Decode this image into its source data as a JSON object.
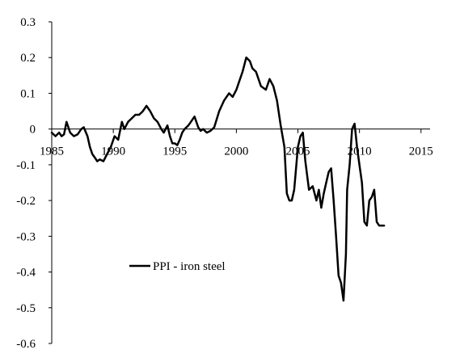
{
  "chart_data": {
    "type": "line",
    "title": "",
    "xlabel": "",
    "ylabel": "",
    "xlim": [
      1985,
      2016
    ],
    "ylim": [
      -0.6,
      0.3
    ],
    "x_ticks": [
      1985,
      1990,
      1995,
      2000,
      2005,
      2010,
      2015
    ],
    "x_tick_labels": [
      "1985",
      "1990",
      "1995",
      "2000",
      "2005",
      "2010",
      "2015"
    ],
    "y_ticks": [
      0.3,
      0.2,
      0.1,
      0,
      -0.1,
      -0.2,
      -0.3,
      -0.4,
      -0.5,
      -0.6
    ],
    "y_tick_labels": [
      "0.3",
      "0.2",
      "0.1",
      "0",
      "-0.1",
      "-0.2",
      "-0.3",
      "-0.4",
      "-0.5",
      "-0.6"
    ],
    "grid": false,
    "legend": {
      "position": "lower-left"
    },
    "series": [
      {
        "name": "PPI - iron steel",
        "color": "#000000",
        "x": [
          1985.0,
          1985.3,
          1985.6,
          1985.8,
          1986.0,
          1986.2,
          1986.5,
          1986.8,
          1987.1,
          1987.4,
          1987.6,
          1987.9,
          1988.1,
          1988.3,
          1988.5,
          1988.7,
          1988.9,
          1989.2,
          1989.5,
          1989.8,
          1990.1,
          1990.4,
          1990.7,
          1990.9,
          1991.2,
          1991.5,
          1991.8,
          1992.1,
          1992.4,
          1992.7,
          1993.0,
          1993.3,
          1993.6,
          1993.9,
          1994.1,
          1994.4,
          1994.6,
          1994.8,
          1995.0,
          1995.2,
          1995.4,
          1995.6,
          1995.8,
          1996.1,
          1996.3,
          1996.6,
          1996.9,
          1997.1,
          1997.3,
          1997.6,
          1997.9,
          1998.2,
          1998.6,
          1999.0,
          1999.4,
          1999.7,
          2000.0,
          2000.2,
          2000.5,
          2000.8,
          2001.1,
          2001.3,
          2001.6,
          2002.0,
          2002.4,
          2002.7,
          2003.0,
          2003.3,
          2003.6,
          2003.9,
          2004.1,
          2004.3,
          2004.5,
          2004.7,
          2005.0,
          2005.2,
          2005.4,
          2005.6,
          2005.9,
          2006.2,
          2006.5,
          2006.7,
          2006.9,
          2007.1,
          2007.3,
          2007.5,
          2007.7,
          2007.9,
          2008.1,
          2008.3,
          2008.5,
          2008.7,
          2008.9,
          2009.0,
          2009.2,
          2009.4,
          2009.6,
          2009.8,
          2010.0,
          2010.2,
          2010.4,
          2010.6,
          2010.8,
          2011.0,
          2011.2,
          2011.4,
          2011.6,
          2011.8,
          2012.0
        ],
        "values": [
          -0.01,
          -0.02,
          -0.01,
          -0.02,
          -0.015,
          0.02,
          -0.01,
          -0.02,
          -0.015,
          0.0,
          0.005,
          -0.02,
          -0.05,
          -0.07,
          -0.08,
          -0.09,
          -0.085,
          -0.09,
          -0.07,
          -0.05,
          -0.02,
          -0.03,
          0.02,
          0.0,
          0.02,
          0.03,
          0.04,
          0.04,
          0.05,
          0.065,
          0.05,
          0.03,
          0.02,
          0.0,
          -0.01,
          0.01,
          -0.02,
          -0.04,
          -0.04,
          -0.045,
          -0.03,
          -0.01,
          0.0,
          0.01,
          0.02,
          0.035,
          0.005,
          -0.005,
          0.0,
          -0.01,
          -0.005,
          0.005,
          0.05,
          0.08,
          0.1,
          0.09,
          0.11,
          0.13,
          0.16,
          0.2,
          0.19,
          0.17,
          0.16,
          0.12,
          0.11,
          0.14,
          0.12,
          0.08,
          0.01,
          -0.05,
          -0.18,
          -0.2,
          -0.2,
          -0.17,
          -0.05,
          -0.02,
          -0.01,
          -0.09,
          -0.17,
          -0.16,
          -0.2,
          -0.17,
          -0.22,
          -0.18,
          -0.15,
          -0.12,
          -0.11,
          -0.2,
          -0.3,
          -0.41,
          -0.43,
          -0.48,
          -0.35,
          -0.17,
          -0.1,
          0.0,
          0.015,
          -0.05,
          -0.1,
          -0.15,
          -0.26,
          -0.27,
          -0.2,
          -0.19,
          -0.17,
          -0.26,
          -0.27,
          -0.27,
          -0.27
        ]
      }
    ]
  }
}
